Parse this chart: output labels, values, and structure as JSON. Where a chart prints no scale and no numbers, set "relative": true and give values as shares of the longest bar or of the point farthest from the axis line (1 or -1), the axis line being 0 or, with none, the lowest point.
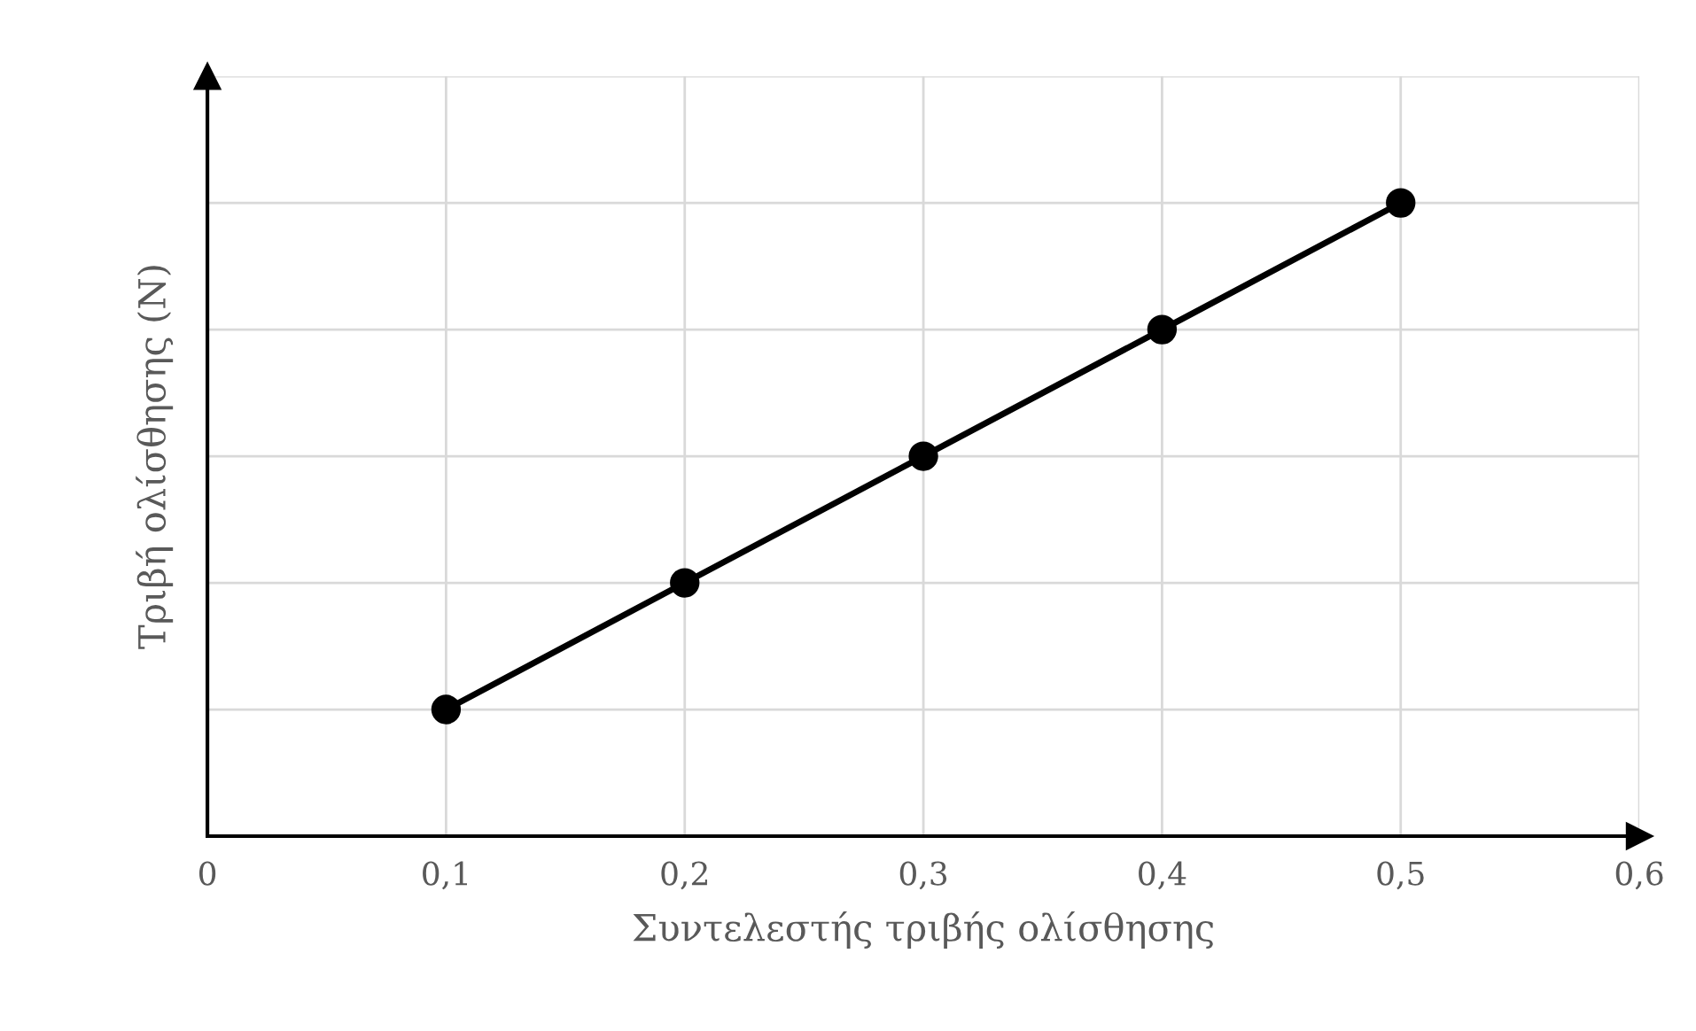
{
  "chart_data": {
    "type": "line",
    "relative": true,
    "xlabel": "Συντελεστής τριβής ολίσθησης",
    "ylabel": "Τριβή ολίσθησης (N)",
    "x": [
      0.1,
      0.2,
      0.3,
      0.4,
      0.5
    ],
    "series": [
      {
        "color": "#000000",
        "values": [
          0.2,
          0.4,
          0.6,
          0.8,
          1.0
        ]
      }
    ],
    "xlim": [
      0,
      0.6
    ],
    "xticks": [
      {
        "value": 0,
        "label": "0"
      },
      {
        "value": 0.1,
        "label": "0,1"
      },
      {
        "value": 0.2,
        "label": "0,2"
      },
      {
        "value": 0.3,
        "label": "0,3"
      },
      {
        "value": 0.4,
        "label": "0,4"
      },
      {
        "value": 0.5,
        "label": "0,5"
      },
      {
        "value": 0.6,
        "label": "0,6"
      }
    ],
    "grid": true,
    "marker": "circle",
    "line_style": "solid",
    "legend": false
  }
}
